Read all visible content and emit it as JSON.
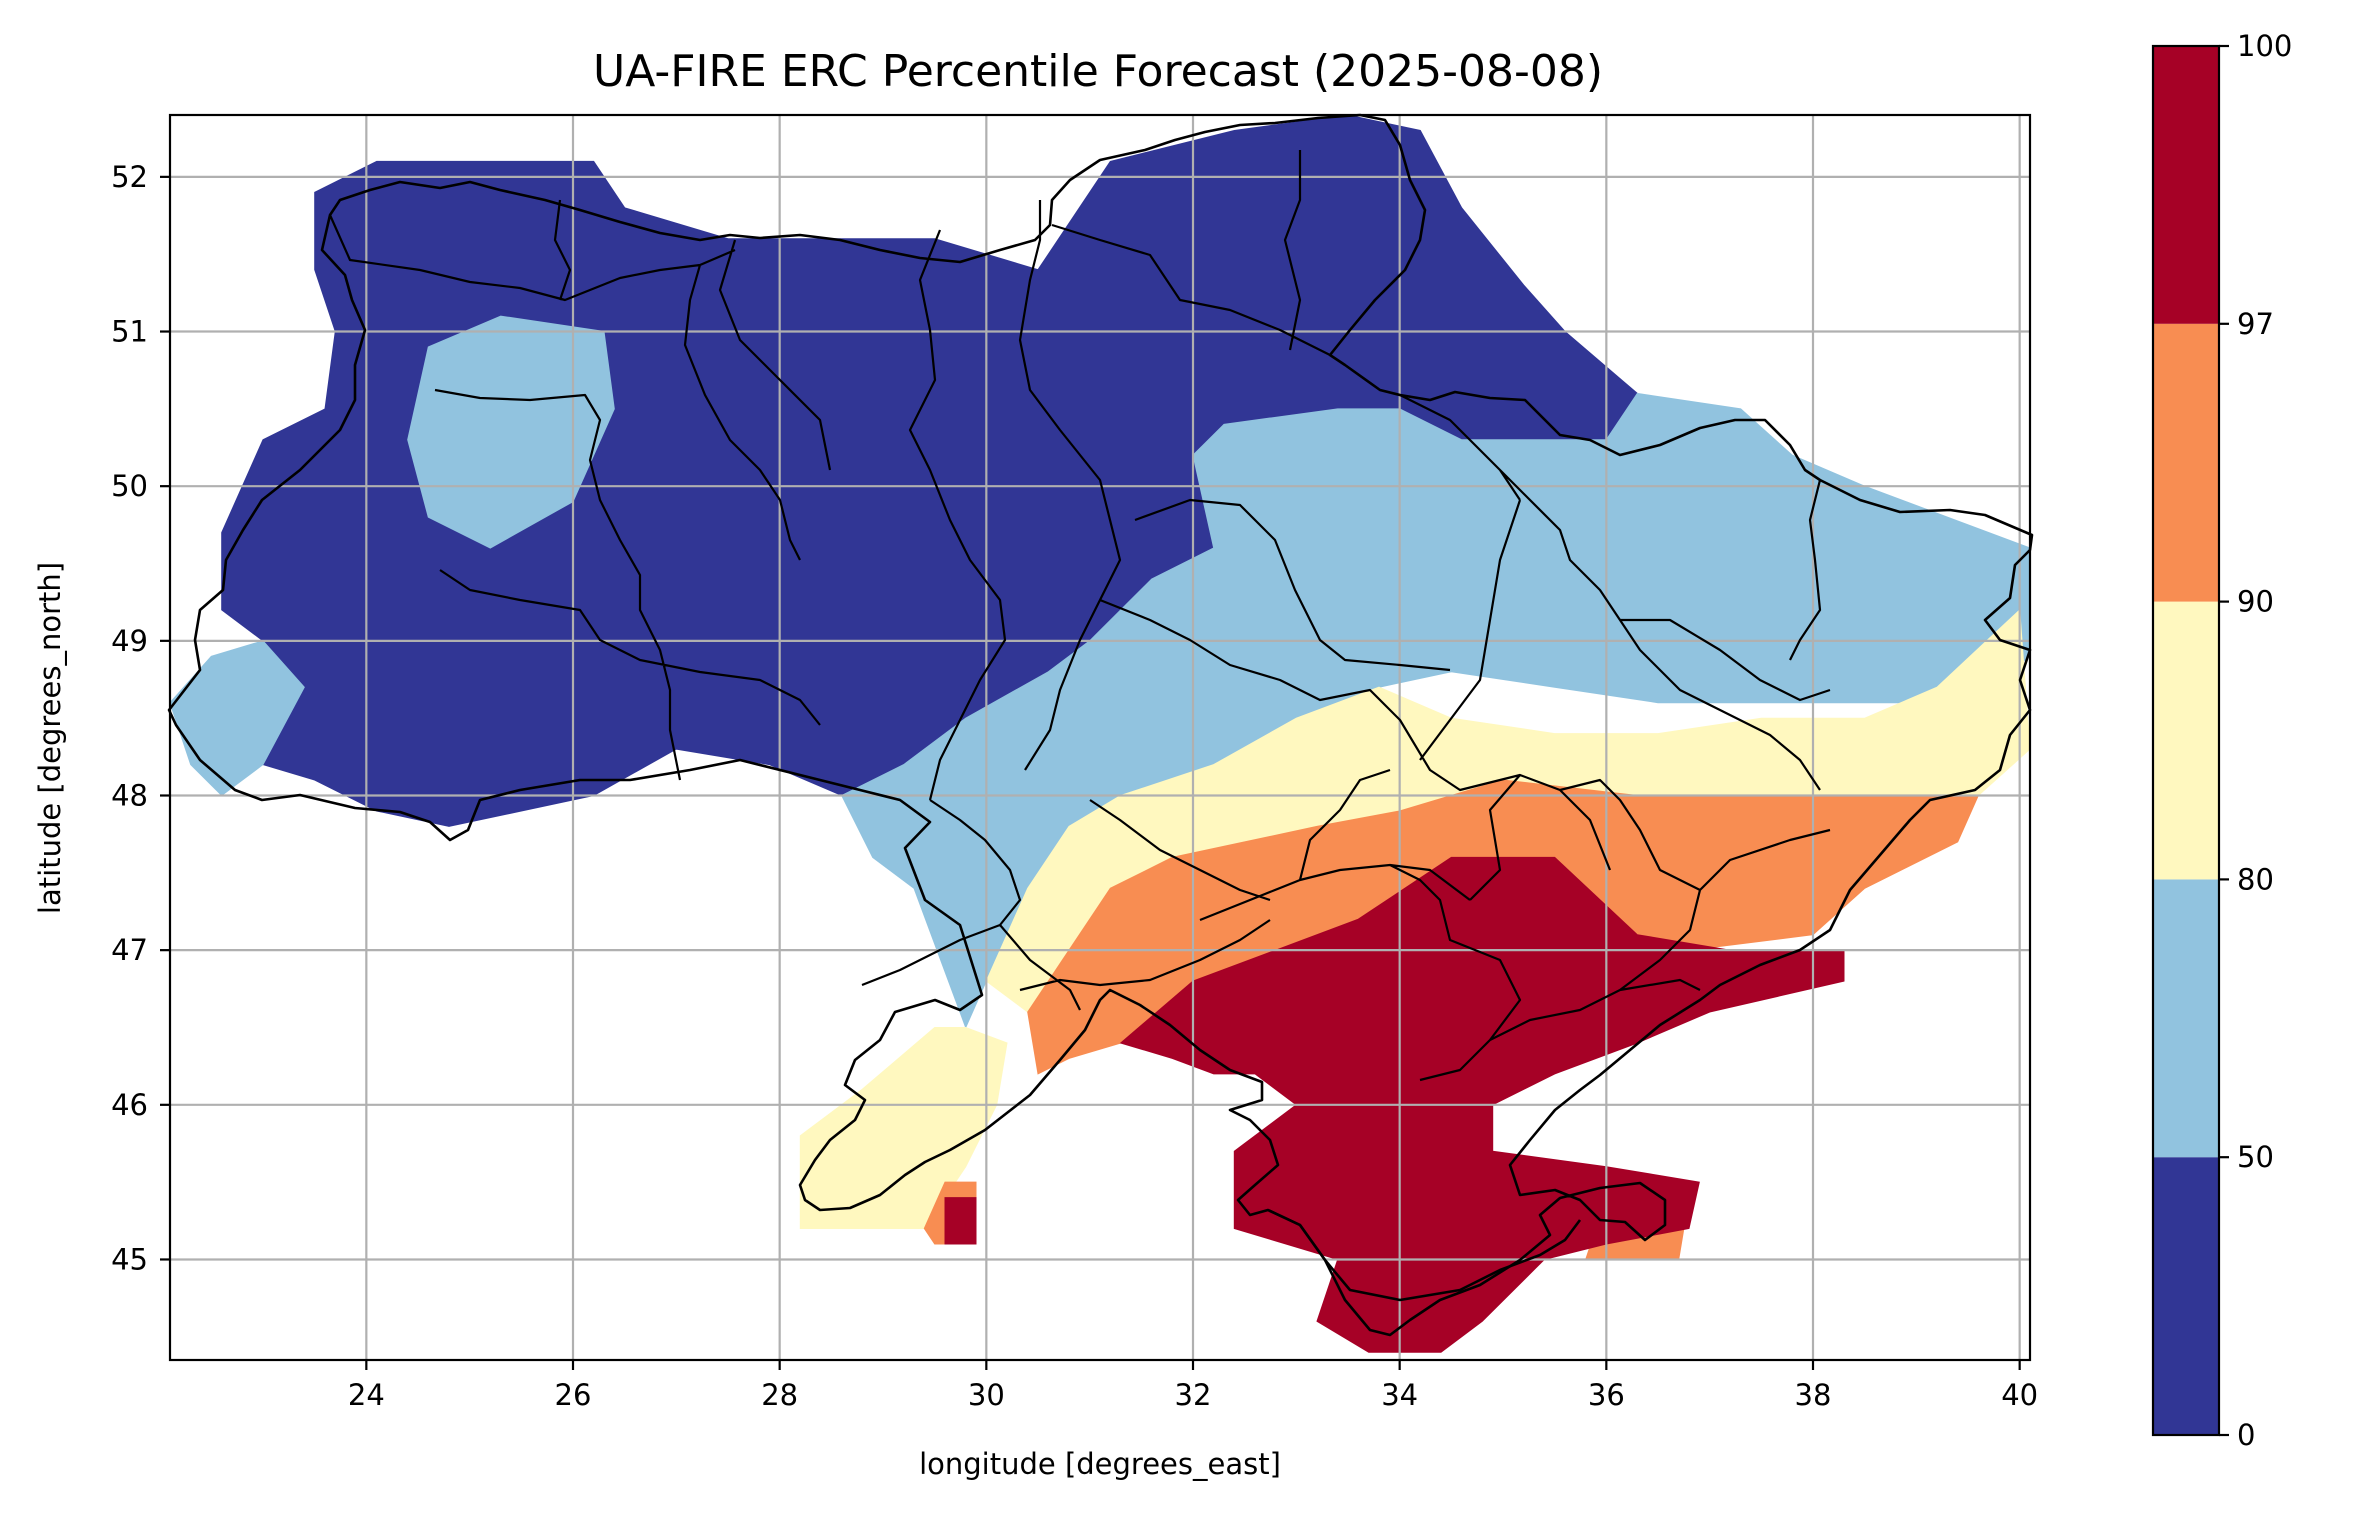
{
  "title": "UA-FIRE ERC Percentile Forecast (2025-08-08)",
  "xlabel": "longitude [degrees_east]",
  "ylabel": "latitude [degrees_north]",
  "colors": {
    "c0": "#313695",
    "c1": "#91c3df",
    "c2": "#fff8bf",
    "c3": "#f88d52",
    "c4": "#a60126",
    "grid": "#b0b0b0",
    "border": "#000000"
  },
  "chart_data": {
    "type": "heatmap",
    "xlim": [
      22.1,
      40.1
    ],
    "ylim": [
      44.35,
      52.4
    ],
    "x_ticks": [
      24,
      26,
      28,
      30,
      32,
      34,
      36,
      38,
      40
    ],
    "y_ticks": [
      45,
      46,
      47,
      48,
      49,
      50,
      51,
      52
    ],
    "grid": true,
    "colorbar": {
      "boundaries": [
        0,
        50,
        80,
        90,
        97,
        100
      ],
      "tick_labels": [
        "0",
        "50",
        "80",
        "90",
        "97",
        "100"
      ],
      "colors": [
        "#313695",
        "#91c3df",
        "#fff8bf",
        "#f88d52",
        "#a60126"
      ],
      "placement": "right"
    },
    "category_regions": [
      {
        "class": "0-50",
        "color": "#313695",
        "lon_lat": [
          [
            23.5,
            51.9
          ],
          [
            24.1,
            52.1
          ],
          [
            26.2,
            52.1
          ],
          [
            26.5,
            51.8
          ],
          [
            27.5,
            51.6
          ],
          [
            28.5,
            51.6
          ],
          [
            29.5,
            51.6
          ],
          [
            30.5,
            51.4
          ],
          [
            31.2,
            52.1
          ],
          [
            32.4,
            52.3
          ],
          [
            33.5,
            52.4
          ],
          [
            34.2,
            52.3
          ],
          [
            34.6,
            51.8
          ],
          [
            35.2,
            51.3
          ],
          [
            35.6,
            51.0
          ],
          [
            36.3,
            50.6
          ],
          [
            36.0,
            50.3
          ],
          [
            35.3,
            50.3
          ],
          [
            34.6,
            50.3
          ],
          [
            34.0,
            50.5
          ],
          [
            33.4,
            50.5
          ],
          [
            32.3,
            50.4
          ],
          [
            32.0,
            50.2
          ],
          [
            32.2,
            49.6
          ],
          [
            31.6,
            49.4
          ],
          [
            31.0,
            49.0
          ],
          [
            30.6,
            48.8
          ],
          [
            29.8,
            48.5
          ],
          [
            29.2,
            48.2
          ],
          [
            28.6,
            48.0
          ],
          [
            27.9,
            48.2
          ],
          [
            27.0,
            48.3
          ],
          [
            26.2,
            48.0
          ],
          [
            25.5,
            47.9
          ],
          [
            24.8,
            47.8
          ],
          [
            24.1,
            47.9
          ],
          [
            23.5,
            48.1
          ],
          [
            23.0,
            48.2
          ],
          [
            23.4,
            48.7
          ],
          [
            23.0,
            49.0
          ],
          [
            22.6,
            49.2
          ],
          [
            22.6,
            49.7
          ],
          [
            23.0,
            50.3
          ],
          [
            23.6,
            50.5
          ],
          [
            23.7,
            51.0
          ],
          [
            23.5,
            51.4
          ]
        ]
      },
      {
        "class": "50-80",
        "color": "#91c3df",
        "lon_lat": [
          [
            32.2,
            49.6
          ],
          [
            32.0,
            50.2
          ],
          [
            32.3,
            50.4
          ],
          [
            33.4,
            50.5
          ],
          [
            34.0,
            50.5
          ],
          [
            34.6,
            50.3
          ],
          [
            35.3,
            50.3
          ],
          [
            36.0,
            50.3
          ],
          [
            36.3,
            50.6
          ],
          [
            37.3,
            50.5
          ],
          [
            37.8,
            50.2
          ],
          [
            38.5,
            50.0
          ],
          [
            39.3,
            49.8
          ],
          [
            40.1,
            49.6
          ],
          [
            40.1,
            48.9
          ],
          [
            39.5,
            48.6
          ],
          [
            38.5,
            48.6
          ],
          [
            37.5,
            48.6
          ],
          [
            36.5,
            48.6
          ],
          [
            35.5,
            48.7
          ],
          [
            34.5,
            48.8
          ],
          [
            33.8,
            48.7
          ],
          [
            33.0,
            48.5
          ],
          [
            32.2,
            48.2
          ],
          [
            31.3,
            48.0
          ],
          [
            30.8,
            47.8
          ],
          [
            30.4,
            47.4
          ],
          [
            30.0,
            46.8
          ],
          [
            29.8,
            46.5
          ],
          [
            29.3,
            47.4
          ],
          [
            28.9,
            47.6
          ],
          [
            28.6,
            48.0
          ],
          [
            29.2,
            48.2
          ],
          [
            29.8,
            48.5
          ],
          [
            30.6,
            48.8
          ],
          [
            31.0,
            49.0
          ],
          [
            31.6,
            49.4
          ]
        ]
      },
      {
        "class": "50-80",
        "color": "#91c3df",
        "lon_lat": [
          [
            22.1,
            48.6
          ],
          [
            22.5,
            48.9
          ],
          [
            23.0,
            49.0
          ],
          [
            23.4,
            48.7
          ],
          [
            23.0,
            48.2
          ],
          [
            22.6,
            48.0
          ],
          [
            22.3,
            48.2
          ]
        ]
      },
      {
        "class": "50-80",
        "color": "#91c3df",
        "lon_lat": [
          [
            24.6,
            50.9
          ],
          [
            25.3,
            51.1
          ],
          [
            26.3,
            51.0
          ],
          [
            26.4,
            50.5
          ],
          [
            26.0,
            49.9
          ],
          [
            25.2,
            49.6
          ],
          [
            24.6,
            49.8
          ],
          [
            24.4,
            50.3
          ]
        ]
      },
      {
        "class": "80-90",
        "color": "#fff8bf",
        "lon_lat": [
          [
            30.4,
            47.4
          ],
          [
            30.8,
            47.8
          ],
          [
            31.3,
            48.0
          ],
          [
            32.2,
            48.2
          ],
          [
            33.0,
            48.5
          ],
          [
            33.8,
            48.7
          ],
          [
            34.5,
            48.5
          ],
          [
            35.5,
            48.4
          ],
          [
            36.5,
            48.4
          ],
          [
            37.5,
            48.5
          ],
          [
            38.5,
            48.5
          ],
          [
            39.2,
            48.7
          ],
          [
            40.0,
            49.2
          ],
          [
            40.1,
            48.3
          ],
          [
            39.6,
            48.0
          ],
          [
            38.5,
            48.0
          ],
          [
            37.5,
            48.0
          ],
          [
            36.3,
            48.0
          ],
          [
            35.0,
            48.1
          ],
          [
            34.0,
            47.9
          ],
          [
            33.2,
            47.8
          ],
          [
            32.5,
            47.7
          ],
          [
            31.8,
            47.6
          ],
          [
            31.2,
            47.4
          ],
          [
            30.8,
            47.0
          ],
          [
            30.4,
            46.6
          ],
          [
            30.0,
            46.8
          ]
        ]
      },
      {
        "class": "80-90",
        "color": "#fff8bf",
        "lon_lat": [
          [
            28.2,
            45.2
          ],
          [
            28.2,
            45.8
          ],
          [
            28.8,
            46.1
          ],
          [
            29.5,
            46.5
          ],
          [
            29.8,
            46.5
          ],
          [
            30.2,
            46.4
          ],
          [
            30.1,
            46.0
          ],
          [
            29.8,
            45.6
          ],
          [
            29.4,
            45.2
          ]
        ]
      },
      {
        "class": "90-97",
        "color": "#f88d52",
        "lon_lat": [
          [
            30.4,
            46.6
          ],
          [
            30.8,
            47.0
          ],
          [
            31.2,
            47.4
          ],
          [
            31.8,
            47.6
          ],
          [
            32.5,
            47.7
          ],
          [
            33.2,
            47.8
          ],
          [
            34.0,
            47.9
          ],
          [
            35.0,
            48.1
          ],
          [
            36.3,
            48.0
          ],
          [
            37.5,
            48.0
          ],
          [
            38.5,
            48.0
          ],
          [
            39.6,
            48.0
          ],
          [
            39.4,
            47.7
          ],
          [
            38.5,
            47.4
          ],
          [
            38.0,
            47.1
          ],
          [
            36.8,
            47.0
          ],
          [
            35.5,
            47.0
          ],
          [
            34.5,
            47.3
          ],
          [
            33.6,
            47.2
          ],
          [
            32.8,
            47.0
          ],
          [
            32.0,
            46.8
          ],
          [
            31.3,
            46.4
          ],
          [
            30.8,
            46.3
          ],
          [
            30.5,
            46.2
          ]
        ]
      },
      {
        "class": "90-97",
        "color": "#f88d52",
        "lon_lat": [
          [
            29.4,
            45.2
          ],
          [
            29.6,
            45.5
          ],
          [
            29.9,
            45.5
          ],
          [
            29.9,
            45.1
          ],
          [
            29.5,
            45.1
          ]
        ]
      },
      {
        "class": "90-97",
        "color": "#f88d52",
        "lon_lat": [
          [
            35.8,
            45.0
          ],
          [
            36.7,
            45.0
          ],
          [
            36.8,
            45.4
          ],
          [
            36.3,
            45.3
          ],
          [
            35.9,
            45.2
          ]
        ]
      },
      {
        "class": "97-100",
        "color": "#a60126",
        "lon_lat": [
          [
            31.3,
            46.4
          ],
          [
            32.0,
            46.8
          ],
          [
            32.8,
            47.0
          ],
          [
            33.6,
            47.2
          ],
          [
            34.5,
            47.6
          ],
          [
            35.5,
            47.6
          ],
          [
            36.3,
            47.1
          ],
          [
            37.2,
            47.0
          ],
          [
            38.3,
            47.0
          ],
          [
            38.3,
            46.8
          ],
          [
            37.0,
            46.6
          ],
          [
            36.3,
            46.4
          ],
          [
            35.5,
            46.2
          ],
          [
            34.9,
            46.0
          ],
          [
            34.9,
            45.7
          ],
          [
            36.0,
            45.6
          ],
          [
            36.9,
            45.5
          ],
          [
            36.8,
            45.2
          ],
          [
            36.0,
            45.1
          ],
          [
            35.4,
            45.0
          ],
          [
            34.8,
            44.6
          ],
          [
            34.4,
            44.4
          ],
          [
            33.7,
            44.4
          ],
          [
            33.2,
            44.6
          ],
          [
            33.4,
            45.0
          ],
          [
            32.4,
            45.2
          ],
          [
            32.4,
            45.7
          ],
          [
            33.0,
            46.0
          ],
          [
            32.6,
            46.2
          ],
          [
            32.2,
            46.2
          ],
          [
            31.8,
            46.3
          ]
        ]
      },
      {
        "class": "97-100",
        "color": "#a60126",
        "lon_lat": [
          [
            29.6,
            45.1
          ],
          [
            29.9,
            45.1
          ],
          [
            29.9,
            45.4
          ],
          [
            29.6,
            45.4
          ]
        ]
      }
    ]
  }
}
